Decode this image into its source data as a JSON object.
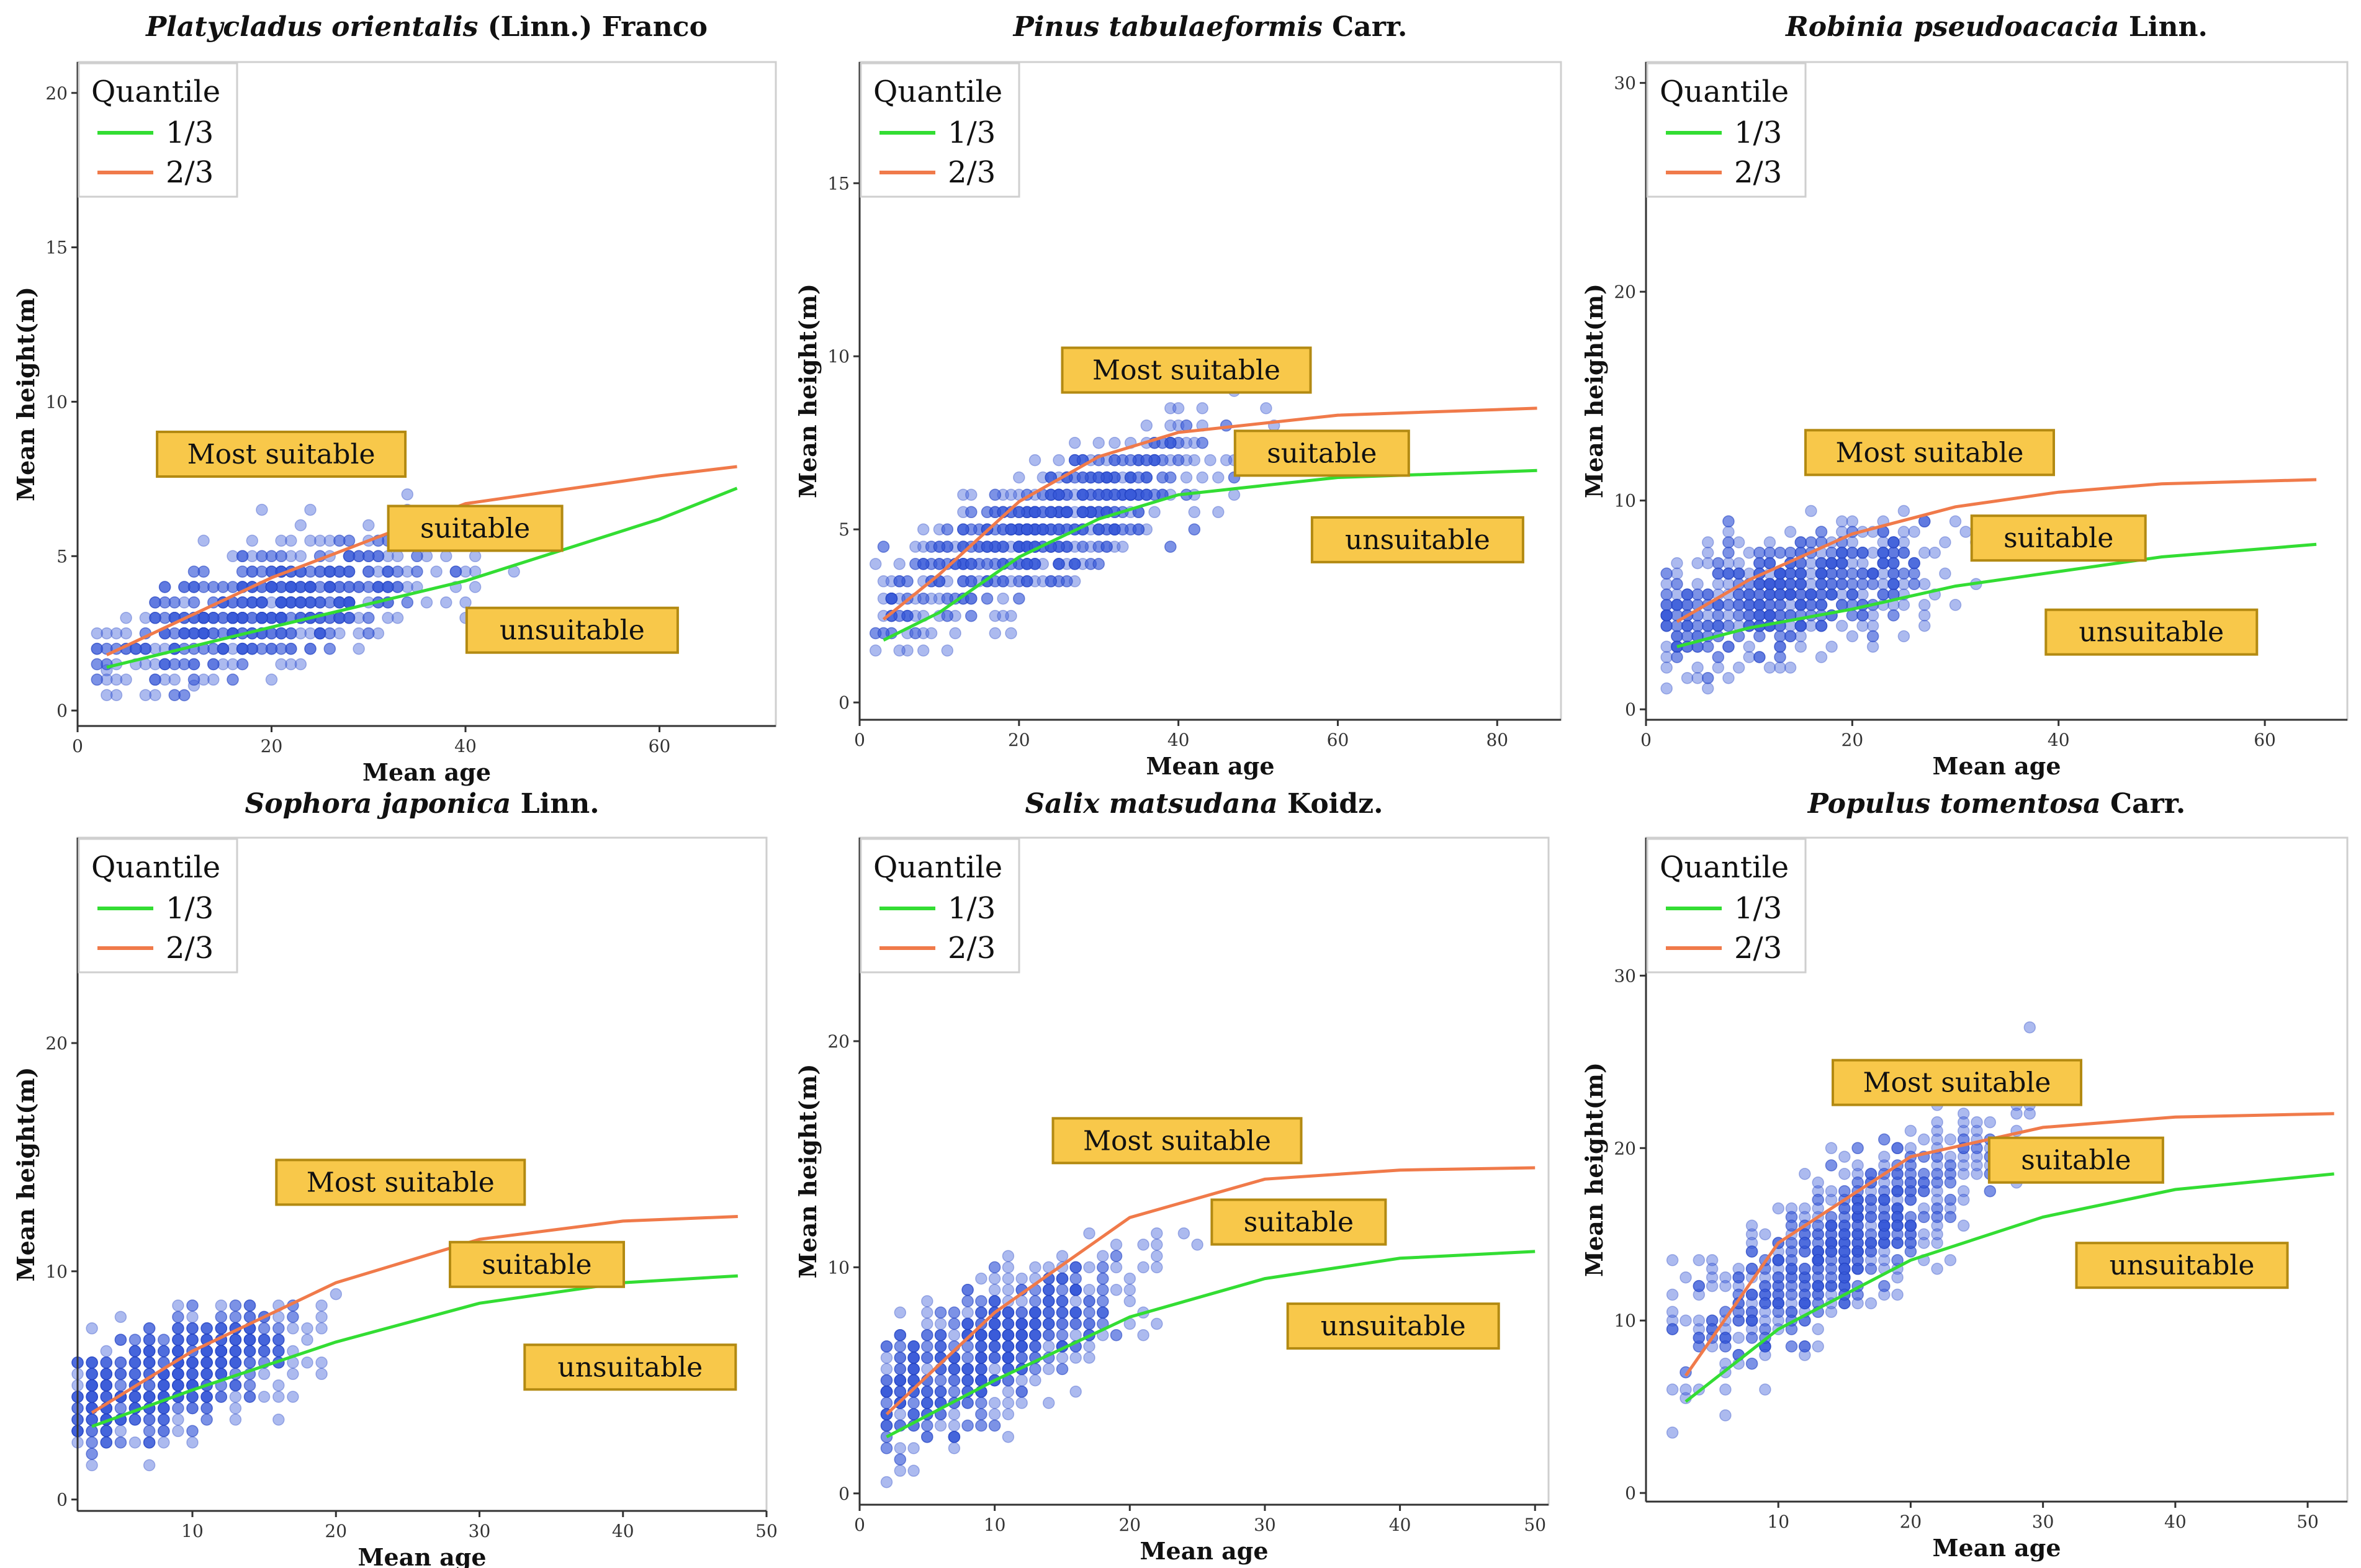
{
  "colors": {
    "q1": "#33dd33",
    "q2": "#f07a4a",
    "points": "#3a5ad8",
    "zone_fill": "#f8c84a",
    "zone_border": "#b38a12"
  },
  "legend": {
    "title": "Quantile",
    "q1_label": "1/3",
    "q2_label": "2/3"
  },
  "chart_data": [
    {
      "type": "scatter",
      "title_italic": "Platycladus orientalis",
      "title_rest": " (Linn.) Franco",
      "xlabel": "Mean age",
      "ylabel": "Mean height(m)",
      "xlim": [
        0,
        72
      ],
      "ylim": [
        -0.5,
        21
      ],
      "xticks": [
        0,
        20,
        40,
        60
      ],
      "yticks": [
        0,
        5,
        10,
        15,
        20
      ],
      "q1_curve": {
        "x": [
          3,
          20,
          40,
          60,
          68
        ],
        "y": [
          1.4,
          2.7,
          4.2,
          6.2,
          7.2
        ]
      },
      "q2_curve": {
        "x": [
          3,
          20,
          40,
          60,
          68
        ],
        "y": [
          1.8,
          4.3,
          6.7,
          7.6,
          7.9
        ]
      },
      "zones": [
        {
          "label": "Most suitable",
          "x": 21,
          "y": 8.3
        },
        {
          "label": "suitable",
          "x": 41,
          "y": 5.9
        },
        {
          "label": "unsuitable",
          "x": 51,
          "y": 2.6
        }
      ],
      "cloud": {
        "x_center": 20,
        "x_spread": 15,
        "x_max": 68,
        "y_base": 1.5,
        "y_gain": 0.09,
        "y_spread": 2.4,
        "n": 650
      }
    },
    {
      "type": "scatter",
      "title_italic": "Pinus tabulaeformis",
      "title_rest": " Carr.",
      "xlabel": "Mean age",
      "ylabel": "Mean height(m)",
      "xlim": [
        0,
        88
      ],
      "ylim": [
        -0.5,
        18.5
      ],
      "xticks": [
        0,
        20,
        40,
        60,
        80
      ],
      "yticks": [
        0,
        5,
        10,
        15
      ],
      "q1_curve": {
        "x": [
          3,
          10,
          20,
          30,
          40,
          60,
          85
        ],
        "y": [
          1.8,
          2.6,
          4.2,
          5.3,
          6.0,
          6.5,
          6.7
        ]
      },
      "q2_curve": {
        "x": [
          3,
          10,
          20,
          30,
          40,
          60,
          85
        ],
        "y": [
          2.4,
          3.7,
          5.8,
          7.1,
          7.8,
          8.3,
          8.5
        ]
      },
      "zones": [
        {
          "label": "Most suitable",
          "x": 41,
          "y": 9.6
        },
        {
          "label": "suitable",
          "x": 58,
          "y": 7.2
        },
        {
          "label": "unsuitable",
          "x": 70,
          "y": 4.7
        }
      ],
      "cloud": {
        "x_center": 24,
        "x_spread": 18,
        "x_max": 85,
        "y_base": 2.5,
        "y_gain": 0.11,
        "y_spread": 2.1,
        "n": 700
      }
    },
    {
      "type": "scatter",
      "title_italic": "Robinia pseudoacacia",
      "title_rest": " Linn.",
      "xlabel": "Mean age",
      "ylabel": "Mean height(m)",
      "xlim": [
        0,
        68
      ],
      "ylim": [
        -0.5,
        31
      ],
      "xticks": [
        0,
        20,
        40,
        60
      ],
      "yticks": [
        0,
        10,
        20,
        30
      ],
      "q1_curve": {
        "x": [
          3,
          10,
          20,
          30,
          40,
          50,
          65
        ],
        "y": [
          3.0,
          3.9,
          4.8,
          5.9,
          6.6,
          7.3,
          7.9
        ]
      },
      "q2_curve": {
        "x": [
          3,
          10,
          20,
          30,
          40,
          50,
          65
        ],
        "y": [
          4.2,
          6.2,
          8.4,
          9.7,
          10.4,
          10.8,
          11.0
        ]
      },
      "zones": [
        {
          "label": "Most suitable",
          "x": 27.5,
          "y": 12.3
        },
        {
          "label": "suitable",
          "x": 40,
          "y": 8.2
        },
        {
          "label": "unsuitable",
          "x": 49,
          "y": 3.7
        }
      ],
      "cloud": {
        "x_center": 14,
        "x_spread": 13,
        "x_max": 65,
        "y_base": 3.8,
        "y_gain": 0.13,
        "y_spread": 3.4,
        "n": 620
      }
    },
    {
      "type": "scatter",
      "title_italic": "Sophora japonica",
      "title_rest": " Linn.",
      "xlabel": "Mean age",
      "ylabel": "Mean height(m)",
      "xlim": [
        2,
        50
      ],
      "ylim": [
        -0.5,
        29
      ],
      "xticks": [
        10,
        20,
        30,
        40,
        50
      ],
      "yticks": [
        0,
        10,
        20
      ],
      "q1_curve": {
        "x": [
          3,
          10,
          20,
          30,
          40,
          48
        ],
        "y": [
          3.2,
          4.8,
          6.9,
          8.6,
          9.5,
          9.8
        ]
      },
      "q2_curve": {
        "x": [
          3,
          10,
          20,
          30,
          40,
          48
        ],
        "y": [
          3.8,
          6.5,
          9.5,
          11.4,
          12.2,
          12.4
        ]
      },
      "zones": [
        {
          "label": "Most suitable",
          "x": 24.5,
          "y": 13.9
        },
        {
          "label": "suitable",
          "x": 34,
          "y": 10.3
        },
        {
          "label": "unsuitable",
          "x": 40.5,
          "y": 5.8
        }
      ],
      "cloud": {
        "x_center": 9,
        "x_spread": 8,
        "x_max": 48,
        "y_base": 3.5,
        "y_gain": 0.22,
        "y_spread": 3.0,
        "n": 620
      }
    },
    {
      "type": "scatter",
      "title_italic": "Salix matsudana",
      "title_rest": " Koidz.",
      "xlabel": "Mean age",
      "ylabel": "Mean height(m)",
      "xlim": [
        0,
        51
      ],
      "ylim": [
        -0.5,
        29
      ],
      "xticks": [
        0,
        10,
        20,
        30,
        40,
        50
      ],
      "yticks": [
        0,
        10,
        20
      ],
      "q1_curve": {
        "x": [
          2,
          10,
          20,
          30,
          40,
          50
        ],
        "y": [
          2.5,
          5.0,
          7.8,
          9.5,
          10.4,
          10.7
        ]
      },
      "q2_curve": {
        "x": [
          2,
          10,
          20,
          30,
          40,
          50
        ],
        "y": [
          3.5,
          8.0,
          12.2,
          13.9,
          14.3,
          14.4
        ]
      },
      "zones": [
        {
          "label": "Most suitable",
          "x": 23.5,
          "y": 15.6
        },
        {
          "label": "suitable",
          "x": 32.5,
          "y": 12.0
        },
        {
          "label": "unsuitable",
          "x": 39.5,
          "y": 7.4
        }
      ],
      "cloud": {
        "x_center": 10,
        "x_spread": 9,
        "x_max": 50,
        "y_base": 3.5,
        "y_gain": 0.3,
        "y_spread": 3.6,
        "n": 650
      }
    },
    {
      "type": "scatter",
      "title_italic": "Populus tomentosa",
      "title_rest": " Carr.",
      "xlabel": "Mean age",
      "ylabel": "Mean height(m)",
      "xlim": [
        0,
        53
      ],
      "ylim": [
        -0.5,
        38
      ],
      "xticks": [
        10,
        20,
        30,
        40,
        50
      ],
      "yticks": [
        0,
        10,
        20,
        30
      ],
      "q1_curve": {
        "x": [
          3,
          10,
          20,
          30,
          40,
          52
        ],
        "y": [
          5.3,
          9.5,
          13.5,
          16.0,
          17.6,
          18.5
        ]
      },
      "q2_curve": {
        "x": [
          3,
          10,
          20,
          30,
          40,
          52
        ],
        "y": [
          6.8,
          14.5,
          19.5,
          21.2,
          21.8,
          22.0
        ]
      },
      "zones": [
        {
          "label": "Most suitable",
          "x": 23.5,
          "y": 23.8
        },
        {
          "label": "suitable",
          "x": 32.5,
          "y": 19.3
        },
        {
          "label": "unsuitable",
          "x": 40.5,
          "y": 13.2
        }
      ],
      "cloud": {
        "x_center": 15,
        "x_spread": 10,
        "x_max": 52,
        "y_base": 7.0,
        "y_gain": 0.5,
        "y_spread": 5.5,
        "n": 700
      }
    }
  ]
}
